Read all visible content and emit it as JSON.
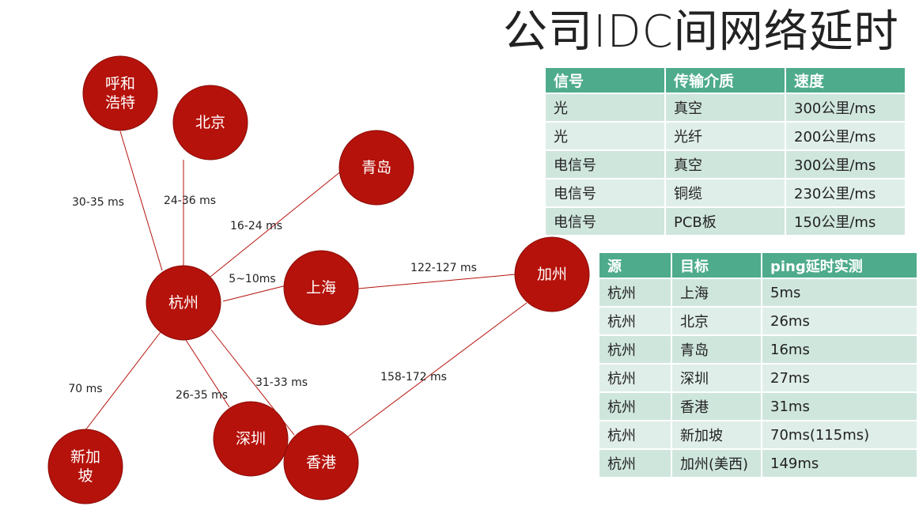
{
  "title": "公司IDC间网络延时",
  "colors": {
    "node": "#b5120b",
    "table_header": "#4eab8c",
    "table_row_a": "#cfe6dd",
    "table_row_b": "#dfeee8"
  },
  "diagram": {
    "nodes": [
      {
        "id": "hangzhou",
        "label": "杭州"
      },
      {
        "id": "huhehaote",
        "label": "呼和\n浩特"
      },
      {
        "id": "beijing",
        "label": "北京"
      },
      {
        "id": "qingdao",
        "label": "青岛"
      },
      {
        "id": "shanghai",
        "label": "上海"
      },
      {
        "id": "california",
        "label": "加州"
      },
      {
        "id": "singapore",
        "label": "新加\n坡"
      },
      {
        "id": "shenzhen",
        "label": "深圳"
      },
      {
        "id": "hongkong",
        "label": "香港"
      }
    ],
    "edges": [
      {
        "from": "hangzhou",
        "to": "huhehaote",
        "label": "30-35 ms"
      },
      {
        "from": "hangzhou",
        "to": "beijing",
        "label": "24-36 ms"
      },
      {
        "from": "hangzhou",
        "to": "qingdao",
        "label": "16-24 ms"
      },
      {
        "from": "hangzhou",
        "to": "shanghai",
        "label": "5~10ms"
      },
      {
        "from": "shanghai",
        "to": "california",
        "label": "122-127 ms"
      },
      {
        "from": "hangzhou",
        "to": "singapore",
        "label": "70 ms"
      },
      {
        "from": "hangzhou",
        "to": "shenzhen",
        "label": "26-35 ms"
      },
      {
        "from": "hangzhou",
        "to": "hongkong",
        "label": "31-33 ms"
      },
      {
        "from": "hongkong",
        "to": "california",
        "label": "158-172 ms"
      }
    ]
  },
  "signal_table": {
    "headers": [
      "信号",
      "传输介质",
      "速度"
    ],
    "rows": [
      [
        "光",
        "真空",
        "300公里/ms"
      ],
      [
        "光",
        "光纤",
        "200公里/ms"
      ],
      [
        "电信号",
        "真空",
        "300公里/ms"
      ],
      [
        "电信号",
        "铜缆",
        "230公里/ms"
      ],
      [
        "电信号",
        "PCB板",
        "150公里/ms"
      ]
    ]
  },
  "ping_table": {
    "headers": [
      "源",
      "目标",
      "ping延时实测"
    ],
    "rows": [
      [
        "杭州",
        "上海",
        "5ms"
      ],
      [
        "杭州",
        "北京",
        "26ms"
      ],
      [
        "杭州",
        "青岛",
        "16ms"
      ],
      [
        "杭州",
        "深圳",
        "27ms"
      ],
      [
        "杭州",
        "香港",
        "31ms"
      ],
      [
        "杭州",
        "新加坡",
        "70ms(115ms)"
      ],
      [
        "杭州",
        "加州(美西)",
        "149ms"
      ]
    ]
  }
}
